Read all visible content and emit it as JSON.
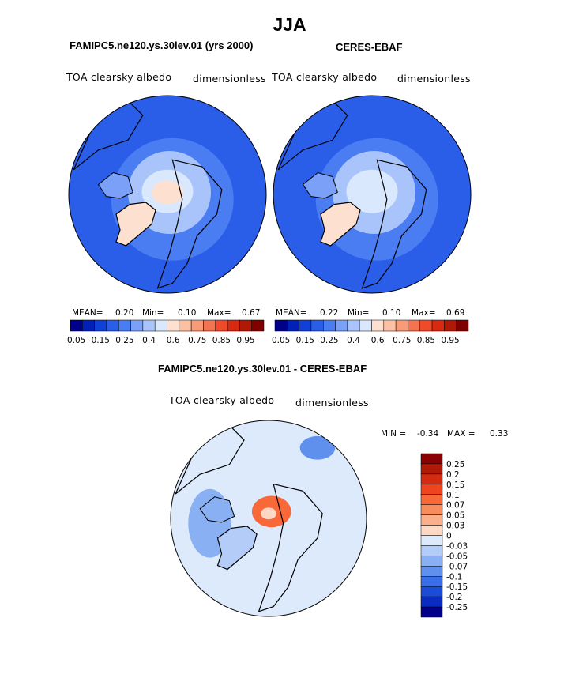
{
  "figure": {
    "title": "JJA",
    "colors": {
      "land_outline": "#000000",
      "background": "#ffffff"
    }
  },
  "chart_data": [
    {
      "type": "heatmap",
      "projection": "polar-stereographic (north)",
      "title": "FAMIPC5.ne120.ys.30lev.01 (yrs 2000)",
      "left_label": "TOA clearsky albedo",
      "right_label": "dimensionless",
      "stats": {
        "mean_label": "MEAN=",
        "mean": "0.20",
        "min_label": "Min=",
        "min": "0.10",
        "max_label": "Max=",
        "max": "0.67"
      },
      "levels": [
        "0.05",
        "0.15",
        "0.25",
        "0.4",
        "0.6",
        "0.75",
        "0.85",
        "0.95"
      ],
      "colormap": [
        "#00008b",
        "#0020b8",
        "#1040d8",
        "#2a5ee8",
        "#4a7cf2",
        "#7aa0f7",
        "#a9c4fa",
        "#d9e8fc",
        "#fde0d0",
        "#fcc0a4",
        "#f99a78",
        "#f47452",
        "#ef4a2a",
        "#d82a10",
        "#b01808",
        "#800000"
      ]
    },
    {
      "type": "heatmap",
      "projection": "polar-stereographic (north)",
      "title": "CERES-EBAF",
      "left_label": "TOA clearsky albedo",
      "right_label": "dimensionless",
      "stats": {
        "mean_label": "MEAN=",
        "mean": "0.22",
        "min_label": "Min=",
        "min": "0.10",
        "max_label": "Max=",
        "max": "0.69"
      },
      "levels": [
        "0.05",
        "0.15",
        "0.25",
        "0.4",
        "0.6",
        "0.75",
        "0.85",
        "0.95"
      ],
      "colormap": [
        "#00008b",
        "#0020b8",
        "#1040d8",
        "#2a5ee8",
        "#4a7cf2",
        "#7aa0f7",
        "#a9c4fa",
        "#d9e8fc",
        "#fde0d0",
        "#fcc0a4",
        "#f99a78",
        "#f47452",
        "#ef4a2a",
        "#d82a10",
        "#b01808",
        "#800000"
      ]
    },
    {
      "type": "heatmap",
      "projection": "polar-stereographic (north)",
      "title": "FAMIPC5.ne120.ys.30lev.01 - CERES-EBAF",
      "left_label": "TOA clearsky albedo",
      "right_label": "dimensionless",
      "stats": {
        "min_label": "MIN =",
        "min": "-0.34",
        "max_label": "MAX =",
        "max": "0.33"
      },
      "levels": [
        "0.25",
        "0.2",
        "0.15",
        "0.1",
        "0.07",
        "0.05",
        "0.03",
        "0",
        "-0.03",
        "-0.05",
        "-0.07",
        "-0.1",
        "-0.15",
        "-0.2",
        "-0.25"
      ],
      "colormap": [
        "#8b0000",
        "#b01a08",
        "#d42a10",
        "#ee4420",
        "#f86838",
        "#f98c5c",
        "#fab08c",
        "#fdd8c4",
        "#dceafc",
        "#b4ccf8",
        "#8ab0f4",
        "#6090ee",
        "#3a6ee6",
        "#1a4cd8",
        "#0a2cc0",
        "#00008b"
      ]
    }
  ]
}
